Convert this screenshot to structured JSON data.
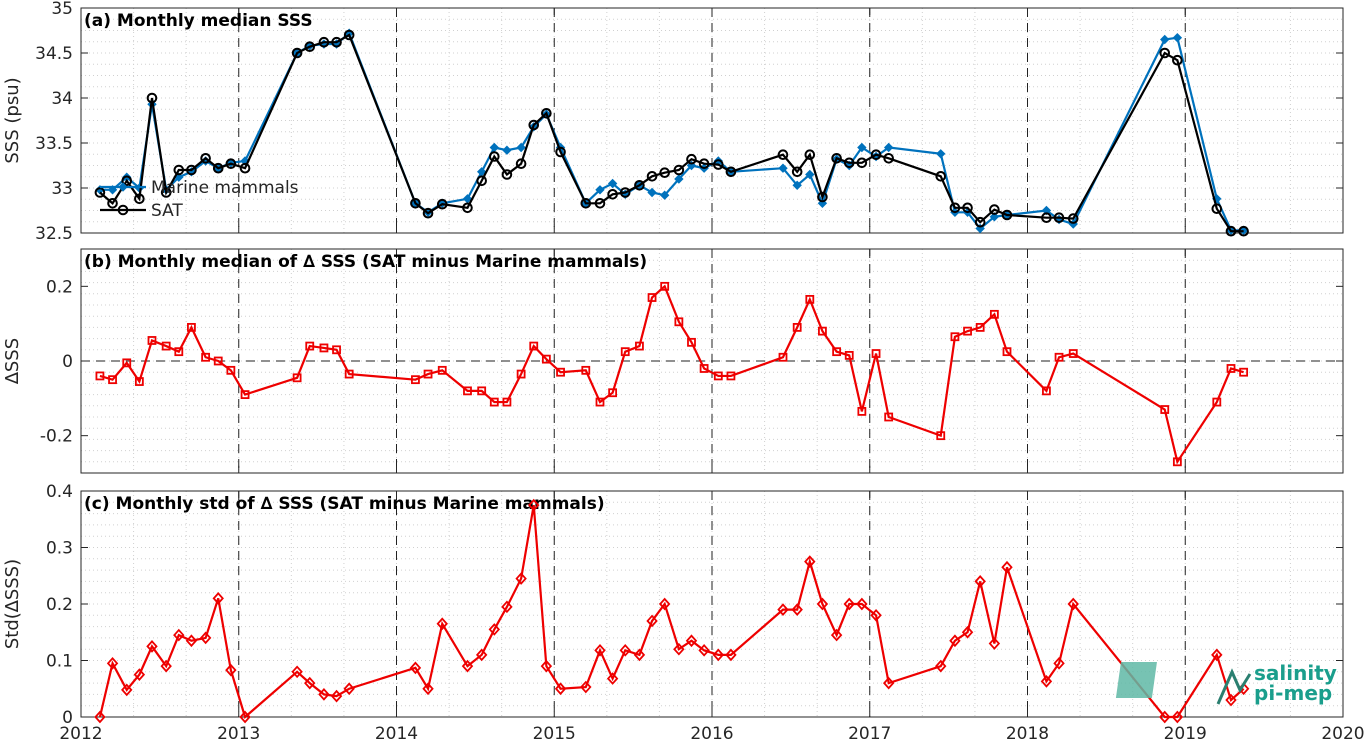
{
  "colors": {
    "marine": "#0072BD",
    "sat": "#000000",
    "delta": "#EE0000",
    "logo": "#1a9e8c"
  },
  "logo": {
    "line1": "salinity",
    "line2": "pi-mep"
  },
  "chart_data": [
    {
      "type": "line",
      "title": "(a) Monthly median SSS",
      "ylabel": "SSS (psu)",
      "xlim": [
        2012,
        2020
      ],
      "ylim": [
        32.5,
        35
      ],
      "yticks": [
        32.5,
        33,
        33.5,
        34,
        34.5,
        35
      ],
      "ytick_labels": [
        "32.5",
        "33",
        "33.5",
        "34",
        "34.5",
        "35"
      ],
      "legend": {
        "position": "left",
        "entries": [
          "Marine mammals",
          "SAT"
        ]
      },
      "grid": true,
      "series": [
        {
          "name": "Marine mammals",
          "x": [
            2012.12,
            2012.2,
            2012.29,
            2012.37,
            2012.45,
            2012.54,
            2012.62,
            2012.7,
            2012.79,
            2012.87,
            2012.95,
            2013.04,
            2013.37,
            2013.45,
            2013.54,
            2013.62,
            2013.7,
            2014.12,
            2014.2,
            2014.29,
            2014.45,
            2014.54,
            2014.62,
            2014.7,
            2014.79,
            2014.87,
            2014.95,
            2015.04,
            2015.2,
            2015.29,
            2015.37,
            2015.45,
            2015.54,
            2015.62,
            2015.7,
            2015.79,
            2015.87,
            2015.95,
            2016.04,
            2016.12,
            2016.45,
            2016.54,
            2016.62,
            2016.7,
            2016.79,
            2016.87,
            2016.95,
            2017.04,
            2017.12,
            2017.45,
            2017.54,
            2017.62,
            2017.7,
            2017.79,
            2017.87,
            2018.12,
            2018.2,
            2018.29,
            2018.87,
            2018.95,
            2019.2,
            2019.29,
            2019.37
          ],
          "y": [
            32.98,
            32.98,
            33.12,
            33.0,
            33.93,
            32.98,
            33.12,
            33.18,
            33.3,
            33.22,
            33.28,
            33.3,
            34.5,
            34.58,
            34.6,
            34.6,
            34.72,
            32.83,
            32.73,
            32.83,
            32.88,
            33.18,
            33.45,
            33.42,
            33.45,
            33.68,
            33.82,
            33.45,
            32.83,
            32.98,
            33.05,
            32.93,
            33.03,
            32.95,
            32.92,
            33.1,
            33.25,
            33.22,
            33.3,
            33.18,
            33.22,
            33.03,
            33.15,
            32.83,
            33.32,
            33.25,
            33.45,
            33.35,
            33.45,
            33.38,
            32.73,
            32.73,
            32.55,
            32.68,
            32.7,
            32.75,
            32.65,
            32.6,
            34.65,
            34.67,
            32.88,
            32.53,
            32.53
          ]
        },
        {
          "name": "SAT",
          "x": [
            2012.12,
            2012.2,
            2012.29,
            2012.37,
            2012.45,
            2012.54,
            2012.62,
            2012.7,
            2012.79,
            2012.87,
            2012.95,
            2013.04,
            2013.37,
            2013.45,
            2013.54,
            2013.62,
            2013.7,
            2014.12,
            2014.2,
            2014.29,
            2014.45,
            2014.54,
            2014.62,
            2014.7,
            2014.79,
            2014.87,
            2014.95,
            2015.04,
            2015.2,
            2015.29,
            2015.37,
            2015.45,
            2015.54,
            2015.62,
            2015.7,
            2015.79,
            2015.87,
            2015.95,
            2016.04,
            2016.12,
            2016.45,
            2016.54,
            2016.62,
            2016.7,
            2016.79,
            2016.87,
            2016.95,
            2017.04,
            2017.12,
            2017.45,
            2017.54,
            2017.62,
            2017.7,
            2017.79,
            2017.87,
            2018.12,
            2018.2,
            2018.29,
            2018.87,
            2018.95,
            2019.2,
            2019.29,
            2019.37
          ],
          "y": [
            32.95,
            32.83,
            33.08,
            32.88,
            34.0,
            32.95,
            33.2,
            33.2,
            33.33,
            33.22,
            33.27,
            33.22,
            34.5,
            34.57,
            34.62,
            34.62,
            34.7,
            32.83,
            32.72,
            32.82,
            32.78,
            33.08,
            33.35,
            33.15,
            33.27,
            33.7,
            33.83,
            33.4,
            32.83,
            32.83,
            32.93,
            32.95,
            33.03,
            33.13,
            33.17,
            33.2,
            33.32,
            33.27,
            33.26,
            33.18,
            33.37,
            33.18,
            33.37,
            32.9,
            33.33,
            33.28,
            33.28,
            33.37,
            33.33,
            33.13,
            32.78,
            32.78,
            32.62,
            32.76,
            32.7,
            32.67,
            32.67,
            32.66,
            34.5,
            34.42,
            32.77,
            32.52,
            32.52
          ]
        }
      ]
    },
    {
      "type": "line",
      "title": "(b) Monthly median of ∆ SSS (SAT minus Marine mammals)",
      "ylabel": "∆SSS",
      "xlim": [
        2012,
        2020
      ],
      "ylim": [
        -0.3,
        0.3
      ],
      "yticks": [
        -0.2,
        0,
        0.2
      ],
      "ytick_labels": [
        "-0.2",
        "0",
        "0.2"
      ],
      "grid": true,
      "series": [
        {
          "name": "",
          "x": [
            2012.12,
            2012.2,
            2012.29,
            2012.37,
            2012.45,
            2012.54,
            2012.62,
            2012.7,
            2012.79,
            2012.87,
            2012.95,
            2013.04,
            2013.37,
            2013.45,
            2013.54,
            2013.62,
            2013.7,
            2014.12,
            2014.2,
            2014.29,
            2014.45,
            2014.54,
            2014.62,
            2014.7,
            2014.79,
            2014.87,
            2014.95,
            2015.04,
            2015.2,
            2015.29,
            2015.37,
            2015.45,
            2015.54,
            2015.62,
            2015.7,
            2015.79,
            2015.87,
            2015.95,
            2016.04,
            2016.12,
            2016.45,
            2016.54,
            2016.62,
            2016.7,
            2016.79,
            2016.87,
            2016.95,
            2017.04,
            2017.12,
            2017.45,
            2017.54,
            2017.62,
            2017.7,
            2017.79,
            2017.87,
            2018.12,
            2018.2,
            2018.29,
            2018.87,
            2018.95,
            2019.2,
            2019.29,
            2019.37
          ],
          "y": [
            -0.04,
            -0.05,
            -0.005,
            -0.055,
            0.055,
            0.04,
            0.025,
            0.09,
            0.01,
            0.0,
            -0.025,
            -0.09,
            -0.045,
            0.04,
            0.035,
            0.03,
            -0.035,
            -0.05,
            -0.035,
            -0.025,
            -0.08,
            -0.08,
            -0.11,
            -0.11,
            -0.035,
            0.04,
            0.005,
            -0.03,
            -0.025,
            -0.11,
            -0.085,
            0.025,
            0.04,
            0.17,
            0.2,
            0.105,
            0.05,
            -0.02,
            -0.04,
            -0.04,
            0.01,
            0.09,
            0.165,
            0.08,
            0.025,
            0.015,
            -0.135,
            0.02,
            -0.15,
            -0.2,
            0.065,
            0.08,
            0.09,
            0.125,
            0.025,
            -0.08,
            0.01,
            0.02,
            -0.13,
            -0.27,
            -0.11,
            -0.02,
            -0.03
          ]
        }
      ]
    },
    {
      "type": "line",
      "title": "(c) Monthly std of ∆ SSS (SAT minus Marine mammals)",
      "ylabel": "Std(∆SSS)",
      "xlabel": "",
      "xlim": [
        2012,
        2020
      ],
      "xticks": [
        "2012",
        "2013",
        "2014",
        "2015",
        "2016",
        "2017",
        "2018",
        "2019",
        "2020"
      ],
      "ylim": [
        0,
        0.4
      ],
      "yticks": [
        0,
        0.1,
        0.2,
        0.3,
        0.4
      ],
      "ytick_labels": [
        "0",
        "0.1",
        "0.2",
        "0.3",
        "0.4"
      ],
      "grid": true,
      "series": [
        {
          "name": "",
          "x": [
            2012.12,
            2012.2,
            2012.29,
            2012.37,
            2012.45,
            2012.54,
            2012.62,
            2012.7,
            2012.79,
            2012.87,
            2012.95,
            2013.04,
            2013.37,
            2013.45,
            2013.54,
            2013.62,
            2013.7,
            2014.12,
            2014.2,
            2014.29,
            2014.45,
            2014.54,
            2014.62,
            2014.7,
            2014.79,
            2014.87,
            2014.95,
            2015.04,
            2015.2,
            2015.29,
            2015.37,
            2015.45,
            2015.54,
            2015.62,
            2015.7,
            2015.79,
            2015.87,
            2015.95,
            2016.04,
            2016.12,
            2016.45,
            2016.54,
            2016.62,
            2016.7,
            2016.79,
            2016.87,
            2016.95,
            2017.04,
            2017.12,
            2017.45,
            2017.54,
            2017.62,
            2017.7,
            2017.79,
            2017.87,
            2018.12,
            2018.2,
            2018.29,
            2018.87,
            2018.95,
            2019.2,
            2019.29,
            2019.37
          ],
          "y": [
            0.0,
            0.095,
            0.048,
            0.075,
            0.125,
            0.09,
            0.145,
            0.135,
            0.14,
            0.21,
            0.083,
            0.0,
            0.08,
            0.06,
            0.04,
            0.037,
            0.05,
            0.087,
            0.05,
            0.165,
            0.09,
            0.11,
            0.155,
            0.195,
            0.245,
            0.375,
            0.09,
            0.05,
            0.053,
            0.118,
            0.068,
            0.118,
            0.11,
            0.17,
            0.2,
            0.12,
            0.135,
            0.118,
            0.11,
            0.11,
            0.19,
            0.19,
            0.275,
            0.2,
            0.145,
            0.2,
            0.2,
            0.18,
            0.06,
            0.09,
            0.135,
            0.15,
            0.24,
            0.13,
            0.265,
            0.063,
            0.095,
            0.2,
            0.0,
            0.0,
            0.11,
            0.03,
            0.05
          ]
        }
      ]
    }
  ]
}
